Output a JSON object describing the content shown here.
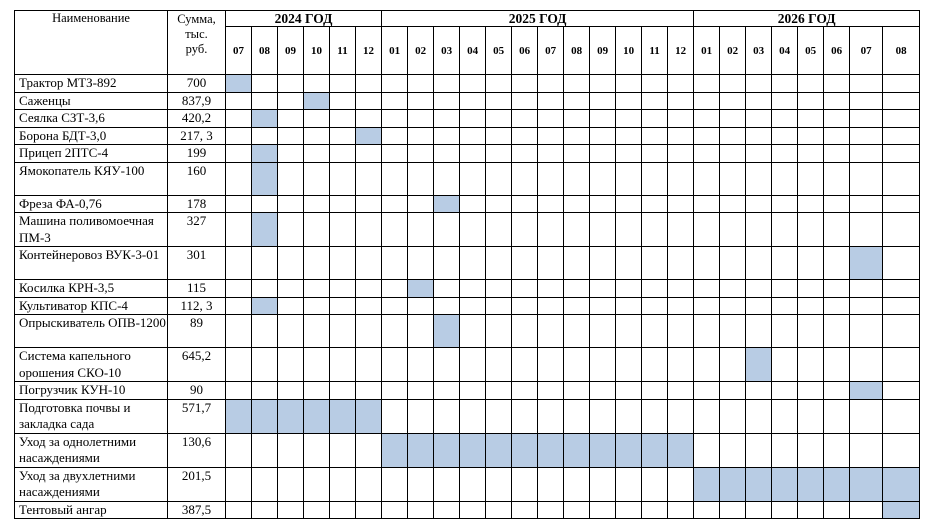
{
  "header": {
    "name_col": "Наименование",
    "sum_col": [
      "Сумма,",
      "тыс.",
      "руб."
    ]
  },
  "years": [
    {
      "label": "2024 ГОД",
      "months": [
        "07",
        "08",
        "09",
        "10",
        "11",
        "12"
      ]
    },
    {
      "label": "2025 ГОД",
      "months": [
        "01",
        "02",
        "03",
        "04",
        "05",
        "06",
        "07",
        "08",
        "09",
        "10",
        "11",
        "12"
      ]
    },
    {
      "label": "2026 ГОД",
      "months": [
        "01",
        "02",
        "03",
        "04",
        "05",
        "06",
        "07",
        "08"
      ]
    }
  ],
  "rows": [
    {
      "name": "Трактор МТЗ-892",
      "sum": "700",
      "active": [
        0
      ]
    },
    {
      "name": "Саженцы",
      "sum": "837,9",
      "active": [
        3
      ]
    },
    {
      "name": "Сеялка СЗТ-3,6",
      "sum": "420,2",
      "active": [
        1
      ]
    },
    {
      "name": "Борона БДТ-3,0",
      "sum": "217, 3",
      "active": [
        5
      ]
    },
    {
      "name": "Прицеп 2ПТС-4",
      "sum": "199",
      "active": [
        1
      ]
    },
    {
      "name": "Ямокопатель КЯУ-100",
      "sum": "160",
      "active": [
        1
      ]
    },
    {
      "name": "Фреза ФА-0,76",
      "sum": "178",
      "active": [
        8
      ]
    },
    {
      "name": "Машина поливомоечная ПМ-3",
      "sum": "327",
      "active": [
        1
      ]
    },
    {
      "name": "Контейнеровоз ВУК-3-01",
      "sum": "301",
      "active": [
        24
      ]
    },
    {
      "name": "Косилка КРН-3,5",
      "sum": "115",
      "active": [
        7
      ]
    },
    {
      "name": "Культиватор КПС-4",
      "sum": "112, 3",
      "active": [
        1
      ]
    },
    {
      "name": "Опрыскиватель ОПВ-1200",
      "sum": "89",
      "active": [
        8
      ]
    },
    {
      "name": "Система капельного орошения СКО-10",
      "sum": "645,2",
      "active": [
        20
      ]
    },
    {
      "name": "Погрузчик КУН-10",
      "sum": "90",
      "active": [
        24
      ]
    },
    {
      "name": "Подготовка почвы и закладка сада",
      "sum": "571,7",
      "active": [
        0,
        1,
        2,
        3,
        4,
        5
      ]
    },
    {
      "name": "Уход за однолетними насаждениями",
      "sum": "130,6",
      "active": [
        6,
        7,
        8,
        9,
        10,
        11,
        12,
        13,
        14,
        15,
        16,
        17
      ]
    },
    {
      "name": "Уход за двухлетними насаждениями",
      "sum": "201,5",
      "active": [
        18,
        19,
        20,
        21,
        22,
        23,
        24,
        25
      ]
    },
    {
      "name": "Тентовый ангар",
      "sum": "387,5",
      "active": [
        25
      ]
    }
  ],
  "colors": {
    "highlight": "#b8cce4",
    "border": "#000000"
  }
}
